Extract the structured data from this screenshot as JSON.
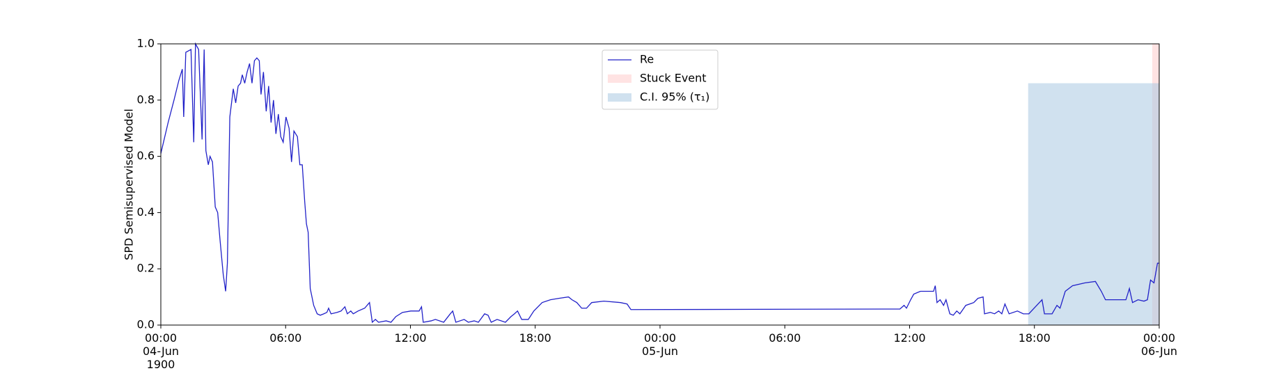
{
  "chart_data": {
    "type": "line",
    "ylabel": "SPD Semisupervised Model",
    "xlim": [
      "1900-06-04 00:00",
      "1900-06-06 00:00"
    ],
    "xticks": [
      {
        "value": "1900-06-04 00:00",
        "label": "00:00\n04-Jun\n1900"
      },
      {
        "value": "1900-06-04 06:00",
        "label": "06:00"
      },
      {
        "value": "1900-06-04 12:00",
        "label": "12:00"
      },
      {
        "value": "1900-06-04 18:00",
        "label": "18:00"
      },
      {
        "value": "1900-06-05 00:00",
        "label": "00:00\n05-Jun"
      },
      {
        "value": "1900-06-05 06:00",
        "label": "06:00"
      },
      {
        "value": "1900-06-05 12:00",
        "label": "12:00"
      },
      {
        "value": "1900-06-05 18:00",
        "label": "18:00"
      },
      {
        "value": "1900-06-06 00:00",
        "label": "00:00\n06-Jun"
      }
    ],
    "ylim": [
      0,
      1
    ],
    "yticks": [
      {
        "value": 0,
        "label": "0.0"
      },
      {
        "value": 0.2,
        "label": "0.2"
      },
      {
        "value": 0.4,
        "label": "0.4"
      },
      {
        "value": 0.6,
        "label": "0.6"
      },
      {
        "value": 0.8,
        "label": "0.8"
      },
      {
        "value": 1,
        "label": "1.0"
      }
    ],
    "x": [
      "1900-06-04 00:00",
      "1900-06-04 00:21",
      "1900-06-04 00:38",
      "1900-06-04 00:52",
      "1900-06-04 01:02",
      "1900-06-04 01:06",
      "1900-06-04 01:12",
      "1900-06-04 01:27",
      "1900-06-04 01:35",
      "1900-06-04 01:40",
      "1900-06-04 01:49",
      "1900-06-04 01:59",
      "1900-06-04 02:05",
      "1900-06-04 02:10",
      "1900-06-04 02:17",
      "1900-06-04 02:22",
      "1900-06-04 02:29",
      "1900-06-04 02:37",
      "1900-06-04 02:44",
      "1900-06-04 02:51",
      "1900-06-04 03:00",
      "1900-06-04 03:07",
      "1900-06-04 03:12",
      "1900-06-04 03:19",
      "1900-06-04 03:29",
      "1900-06-04 03:36",
      "1900-06-04 03:43",
      "1900-06-04 03:50",
      "1900-06-04 03:55",
      "1900-06-04 04:02",
      "1900-06-04 04:09",
      "1900-06-04 04:16",
      "1900-06-04 04:23",
      "1900-06-04 04:30",
      "1900-06-04 04:37",
      "1900-06-04 04:44",
      "1900-06-04 04:49",
      "1900-06-04 04:56",
      "1900-06-04 05:04",
      "1900-06-04 05:11",
      "1900-06-04 05:18",
      "1900-06-04 05:25",
      "1900-06-04 05:32",
      "1900-06-04 05:39",
      "1900-06-04 05:46",
      "1900-06-04 05:53",
      "1900-06-04 06:01",
      "1900-06-04 06:10",
      "1900-06-04 06:17",
      "1900-06-04 06:24",
      "1900-06-04 06:34",
      "1900-06-04 06:41",
      "1900-06-04 06:48",
      "1900-06-04 06:55",
      "1900-06-04 07:00",
      "1900-06-04 07:05",
      "1900-06-04 07:11",
      "1900-06-04 07:21",
      "1900-06-04 07:31",
      "1900-06-04 07:40",
      "1900-06-04 07:50",
      "1900-06-04 07:59",
      "1900-06-04 08:04",
      "1900-06-04 08:11",
      "1900-06-04 08:28",
      "1900-06-04 08:40",
      "1900-06-04 08:51",
      "1900-06-04 08:58",
      "1900-06-04 09:08",
      "1900-06-04 09:15",
      "1900-06-04 09:29",
      "1900-06-04 09:48",
      "1900-06-04 10:02",
      "1900-06-04 10:10",
      "1900-06-04 10:19",
      "1900-06-04 10:28",
      "1900-06-04 10:50",
      "1900-06-04 11:04",
      "1900-06-04 11:18",
      "1900-06-04 11:37",
      "1900-06-04 12:01",
      "1900-06-04 12:25",
      "1900-06-04 12:32",
      "1900-06-04 12:37",
      "1900-06-04 13:00",
      "1900-06-04 13:12",
      "1900-06-04 13:36",
      "1900-06-04 13:55",
      "1900-06-04 14:02",
      "1900-06-04 14:11",
      "1900-06-04 14:35",
      "1900-06-04 14:47",
      "1900-06-04 15:04",
      "1900-06-04 15:16",
      "1900-06-04 15:34",
      "1900-06-04 15:44",
      "1900-06-04 15:53",
      "1900-06-04 16:10",
      "1900-06-04 16:34",
      "1900-06-04 16:50",
      "1900-06-04 17:00",
      "1900-06-04 17:09",
      "1900-06-04 17:21",
      "1900-06-04 17:40",
      "1900-06-04 17:56",
      "1900-06-04 18:20",
      "1900-06-04 18:44",
      "1900-06-04 19:08",
      "1900-06-04 19:36",
      "1900-06-04 19:46",
      "1900-06-04 20:00",
      "1900-06-04 20:14",
      "1900-06-04 20:28",
      "1900-06-04 20:43",
      "1900-06-04 21:18",
      "1900-06-04 22:06",
      "1900-06-04 22:25",
      "1900-06-04 22:36",
      "1900-06-05 11:32",
      "1900-06-05 11:44",
      "1900-06-05 11:51",
      "1900-06-05 12:03",
      "1900-06-05 12:12",
      "1900-06-05 12:31",
      "1900-06-05 13:09",
      "1900-06-05 13:14",
      "1900-06-05 13:19",
      "1900-06-05 13:28",
      "1900-06-05 13:38",
      "1900-06-05 13:45",
      "1900-06-05 13:56",
      "1900-06-05 14:06",
      "1900-06-05 14:16",
      "1900-06-05 14:25",
      "1900-06-05 14:42",
      "1900-06-05 15:05",
      "1900-06-05 15:17",
      "1900-06-05 15:32",
      "1900-06-05 15:36",
      "1900-06-05 15:53",
      "1900-06-05 16:05",
      "1900-06-05 16:17",
      "1900-06-05 16:26",
      "1900-06-05 16:35",
      "1900-06-05 16:47",
      "1900-06-05 17:11",
      "1900-06-05 17:28",
      "1900-06-05 17:44",
      "1900-06-05 17:59",
      "1900-06-05 18:22",
      "1900-06-05 18:29",
      "1900-06-05 18:51",
      "1900-06-05 19:05",
      "1900-06-05 19:14",
      "1900-06-05 19:29",
      "1900-06-05 19:50",
      "1900-06-05 20:26",
      "1900-06-05 20:56",
      "1900-06-05 21:13",
      "1900-06-05 21:25",
      "1900-06-05 22:24",
      "1900-06-05 22:34",
      "1900-06-05 22:43",
      "1900-06-05 22:59",
      "1900-06-05 23:16",
      "1900-06-05 23:26",
      "1900-06-05 23:35",
      "1900-06-05 23:45",
      "1900-06-05 23:55",
      "1900-06-06 00:00"
    ],
    "series": [
      {
        "name": "Re",
        "color": "#2020c8",
        "values": [
          0.61,
          0.72,
          0.8,
          0.87,
          0.91,
          0.74,
          0.97,
          0.98,
          0.65,
          1.0,
          0.98,
          0.66,
          0.98,
          0.62,
          0.57,
          0.6,
          0.58,
          0.42,
          0.4,
          0.3,
          0.18,
          0.12,
          0.22,
          0.74,
          0.84,
          0.79,
          0.85,
          0.86,
          0.89,
          0.86,
          0.9,
          0.93,
          0.86,
          0.94,
          0.95,
          0.94,
          0.82,
          0.9,
          0.76,
          0.85,
          0.72,
          0.8,
          0.68,
          0.75,
          0.67,
          0.65,
          0.74,
          0.7,
          0.58,
          0.69,
          0.67,
          0.57,
          0.57,
          0.44,
          0.36,
          0.33,
          0.13,
          0.07,
          0.04,
          0.035,
          0.04,
          0.045,
          0.06,
          0.04,
          0.045,
          0.05,
          0.065,
          0.04,
          0.05,
          0.04,
          0.05,
          0.06,
          0.08,
          0.01,
          0.02,
          0.01,
          0.015,
          0.01,
          0.03,
          0.045,
          0.05,
          0.05,
          0.065,
          0.01,
          0.015,
          0.02,
          0.01,
          0.04,
          0.05,
          0.01,
          0.02,
          0.01,
          0.015,
          0.01,
          0.04,
          0.035,
          0.01,
          0.02,
          0.01,
          0.03,
          0.04,
          0.05,
          0.02,
          0.02,
          0.05,
          0.08,
          0.09,
          0.095,
          0.1,
          0.09,
          0.08,
          0.06,
          0.06,
          0.08,
          0.085,
          0.08,
          0.075,
          0.055,
          0.057,
          0.07,
          0.06,
          0.09,
          0.11,
          0.12,
          0.12,
          0.14,
          0.08,
          0.09,
          0.07,
          0.09,
          0.04,
          0.035,
          0.05,
          0.04,
          0.07,
          0.08,
          0.095,
          0.1,
          0.04,
          0.045,
          0.04,
          0.05,
          0.04,
          0.075,
          0.04,
          0.05,
          0.04,
          0.04,
          0.06,
          0.09,
          0.04,
          0.04,
          0.07,
          0.06,
          0.12,
          0.14,
          0.15,
          0.155,
          0.12,
          0.09,
          0.09,
          0.13,
          0.08,
          0.09,
          0.085,
          0.09,
          0.16,
          0.15,
          0.22,
          0.22
        ]
      }
    ],
    "spans": [
      {
        "name": "Stuck Event",
        "color": "#ffcccc",
        "x": [
          "1900-06-05 23:40",
          "1900-06-06 00:00"
        ]
      },
      {
        "name": "C.I. 95% (τ₁)",
        "color": "#a9c9e2",
        "x": [
          "1900-06-05 17:42",
          "1900-06-06 00:00"
        ],
        "y": [
          0,
          0.86
        ]
      }
    ]
  }
}
